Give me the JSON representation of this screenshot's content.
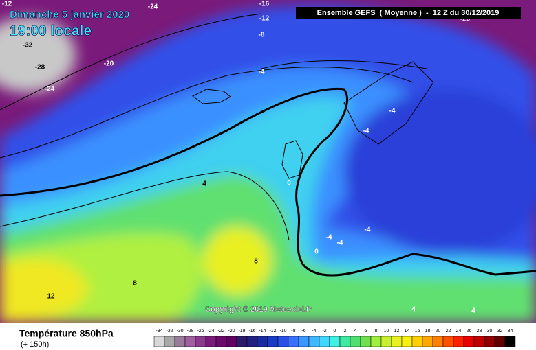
{
  "header": {
    "date": "Dimanche 5 janvier 2020",
    "time": "19:00 locale",
    "model": "Ensemble GEFS  ( Moyenne )  -  12 Z du 30/12/2019"
  },
  "map": {
    "contour_labels": [
      -12,
      -24,
      -16,
      -12,
      -8,
      -32,
      -28,
      -20,
      -24,
      -4,
      -4,
      -4,
      0,
      4,
      -4,
      -4,
      -4,
      0,
      8,
      8,
      12,
      4,
      4,
      -20
    ],
    "copyright": "Copyright © 2019 Meteociel.fr"
  },
  "legend": {
    "title": "Température 850hPa",
    "subtitle": "(+ 150h)",
    "values": [
      -34,
      -32,
      -30,
      -28,
      -26,
      -24,
      -22,
      -20,
      -18,
      -16,
      -14,
      -12,
      -10,
      -8,
      -6,
      -4,
      -2,
      0,
      2,
      4,
      6,
      8,
      10,
      12,
      14,
      16,
      18,
      20,
      22,
      24,
      26,
      28,
      30,
      32,
      34
    ],
    "colors": [
      "#d8d8d8",
      "#a8a8a8",
      "#9a7a9a",
      "#a060a0",
      "#8a3a8a",
      "#7a1a7a",
      "#6a0a6a",
      "#600060",
      "#2a1a6a",
      "#202080",
      "#1a2aa0",
      "#1a3ac8",
      "#2a50e8",
      "#3a70ff",
      "#3a98ff",
      "#40b8ff",
      "#40d8ff",
      "#40f0e0",
      "#40e8a0",
      "#50e070",
      "#70e050",
      "#a0f040",
      "#c8f030",
      "#e8f020",
      "#f8f010",
      "#ffd000",
      "#ffa800",
      "#ff8000",
      "#ff5000",
      "#ff2000",
      "#e80000",
      "#c00000",
      "#900000",
      "#600000",
      "#000000"
    ]
  }
}
